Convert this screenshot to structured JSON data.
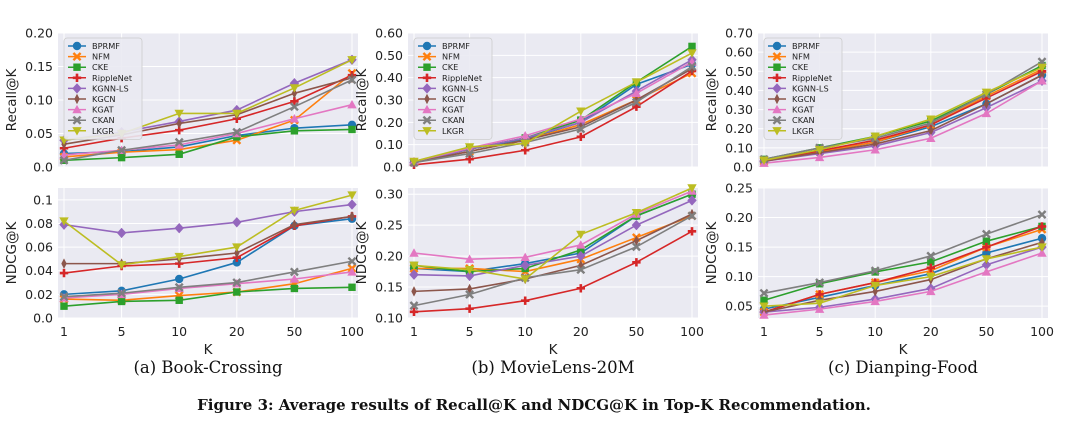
{
  "figure_caption": "Figure 3: Average results of Recall@K and NDCG@K in Top-K Recommendation.",
  "legend_entries": [
    "BPRMF",
    "NFM",
    "CKE",
    "RippleNet",
    "KGNN-LS",
    "KGCN",
    "KGAT",
    "CKAN",
    "LKGR"
  ],
  "series_style": {
    "BPRMF": {
      "color": "#1f77b4",
      "marker": "circle"
    },
    "NFM": {
      "color": "#ff7f0e",
      "marker": "x"
    },
    "CKE": {
      "color": "#2ca02c",
      "marker": "square"
    },
    "RippleNet": {
      "color": "#d62728",
      "marker": "plus"
    },
    "KGNN-LS": {
      "color": "#9467bd",
      "marker": "diamond"
    },
    "KGCN": {
      "color": "#8c564b",
      "marker": "thin-diamond"
    },
    "KGAT": {
      "color": "#e377c2",
      "marker": "triangle-up"
    },
    "CKAN": {
      "color": "#7f7f7f",
      "marker": "x"
    },
    "LKGR": {
      "color": "#bcbd22",
      "marker": "triangle-down"
    }
  },
  "panel_captions": [
    "(a) Book-Crossing",
    "(b) MovieLens-20M",
    "(c) Dianping-Food"
  ],
  "chart_data": [
    {
      "type": "line",
      "id": "bc-recall",
      "dataset": "Book-Crossing",
      "xlabel": "",
      "ylabel": "Recall@K",
      "categories": [
        "1",
        "5",
        "10",
        "20",
        "50",
        "100"
      ],
      "ylim": [
        0,
        0.2
      ],
      "yticks": [
        "0.0",
        "0.05",
        "0.10",
        "0.15",
        "0.20"
      ],
      "ytick_values": [
        0,
        0.05,
        0.1,
        0.15,
        0.2
      ],
      "legend": "top-left",
      "series": [
        {
          "name": "BPRMF",
          "values": [
            0.02,
            0.023,
            0.03,
            0.047,
            0.058,
            0.063
          ]
        },
        {
          "name": "NFM",
          "values": [
            0.015,
            0.022,
            0.026,
            0.04,
            0.07,
            0.14
          ]
        },
        {
          "name": "CKE",
          "values": [
            0.01,
            0.014,
            0.019,
            0.045,
            0.054,
            0.056
          ]
        },
        {
          "name": "RippleNet",
          "values": [
            0.028,
            0.043,
            0.055,
            0.072,
            0.098,
            0.137
          ]
        },
        {
          "name": "KGNN-LS",
          "values": [
            0.04,
            0.052,
            0.068,
            0.085,
            0.125,
            0.16
          ]
        },
        {
          "name": "KGCN",
          "values": [
            0.034,
            0.048,
            0.065,
            0.078,
            0.11,
            0.133
          ]
        },
        {
          "name": "KGAT",
          "values": [
            0.018,
            0.025,
            0.033,
            0.05,
            0.072,
            0.093
          ]
        },
        {
          "name": "CKAN",
          "values": [
            0.01,
            0.025,
            0.037,
            0.052,
            0.09,
            0.13
          ]
        },
        {
          "name": "LKGR",
          "values": [
            0.04,
            0.05,
            0.08,
            0.08,
            0.118,
            0.16
          ]
        }
      ]
    },
    {
      "type": "line",
      "id": "ml-recall",
      "dataset": "MovieLens-20M",
      "xlabel": "",
      "ylabel": "Recall@K",
      "categories": [
        "1",
        "5",
        "10",
        "20",
        "50",
        "100"
      ],
      "ylim": [
        0,
        0.6
      ],
      "yticks": [
        "0.0",
        "0.10",
        "0.20",
        "0.30",
        "0.40",
        "0.50",
        "0.60"
      ],
      "ytick_values": [
        0,
        0.1,
        0.2,
        0.3,
        0.4,
        0.5,
        0.6
      ],
      "legend": "top-left",
      "series": [
        {
          "name": "BPRMF",
          "values": [
            0.02,
            0.08,
            0.125,
            0.2,
            0.37,
            0.46
          ]
        },
        {
          "name": "NFM",
          "values": [
            0.02,
            0.07,
            0.12,
            0.19,
            0.3,
            0.42
          ]
        },
        {
          "name": "CKE",
          "values": [
            0.02,
            0.08,
            0.13,
            0.21,
            0.38,
            0.54
          ]
        },
        {
          "name": "RippleNet",
          "values": [
            0.01,
            0.035,
            0.075,
            0.135,
            0.27,
            0.43
          ]
        },
        {
          "name": "KGNN-LS",
          "values": [
            0.02,
            0.08,
            0.13,
            0.2,
            0.34,
            0.48
          ]
        },
        {
          "name": "KGCN",
          "values": [
            0.02,
            0.07,
            0.12,
            0.18,
            0.3,
            0.44
          ]
        },
        {
          "name": "KGAT",
          "values": [
            0.025,
            0.085,
            0.14,
            0.215,
            0.33,
            0.47
          ]
        },
        {
          "name": "CKAN",
          "values": [
            0.02,
            0.06,
            0.11,
            0.17,
            0.29,
            0.45
          ]
        },
        {
          "name": "LKGR",
          "values": [
            0.025,
            0.09,
            0.105,
            0.25,
            0.38,
            0.51
          ]
        }
      ]
    },
    {
      "type": "line",
      "id": "dp-recall",
      "dataset": "Dianping-Food",
      "xlabel": "",
      "ylabel": "Recall@K",
      "categories": [
        "1",
        "5",
        "10",
        "20",
        "50",
        "100"
      ],
      "ylim": [
        0,
        0.7
      ],
      "yticks": [
        "0.0",
        "0.10",
        "0.20",
        "0.30",
        "0.40",
        "0.50",
        "0.60",
        "0.70"
      ],
      "ytick_values": [
        0,
        0.1,
        0.2,
        0.3,
        0.4,
        0.5,
        0.6,
        0.7
      ],
      "legend": "top-left",
      "series": [
        {
          "name": "BPRMF",
          "values": [
            0.03,
            0.08,
            0.13,
            0.21,
            0.33,
            0.48
          ]
        },
        {
          "name": "NFM",
          "values": [
            0.03,
            0.08,
            0.13,
            0.22,
            0.37,
            0.51
          ]
        },
        {
          "name": "CKE",
          "values": [
            0.04,
            0.1,
            0.16,
            0.24,
            0.38,
            0.53
          ]
        },
        {
          "name": "RippleNet",
          "values": [
            0.03,
            0.085,
            0.14,
            0.22,
            0.36,
            0.5
          ]
        },
        {
          "name": "KGNN-LS",
          "values": [
            0.03,
            0.07,
            0.11,
            0.18,
            0.31,
            0.45
          ]
        },
        {
          "name": "KGCN",
          "values": [
            0.03,
            0.075,
            0.12,
            0.19,
            0.33,
            0.48
          ]
        },
        {
          "name": "KGAT",
          "values": [
            0.02,
            0.05,
            0.09,
            0.15,
            0.28,
            0.45
          ]
        },
        {
          "name": "CKAN",
          "values": [
            0.04,
            0.1,
            0.15,
            0.23,
            0.38,
            0.55
          ]
        },
        {
          "name": "LKGR",
          "values": [
            0.035,
            0.09,
            0.16,
            0.25,
            0.39,
            0.52
          ]
        }
      ]
    },
    {
      "type": "line",
      "id": "bc-ndcg",
      "dataset": "Book-Crossing",
      "xlabel": "K",
      "ylabel": "NDCG@K",
      "categories": [
        "1",
        "5",
        "10",
        "20",
        "50",
        "100"
      ],
      "ylim": [
        0,
        0.11
      ],
      "yticks": [
        "0.0",
        "0.02",
        "0.04",
        "0.06",
        "0.08",
        "0.1"
      ],
      "ytick_values": [
        0,
        0.02,
        0.04,
        0.06,
        0.08,
        0.1
      ],
      "legend": "none",
      "series": [
        {
          "name": "BPRMF",
          "values": [
            0.02,
            0.023,
            0.033,
            0.047,
            0.078,
            0.084
          ]
        },
        {
          "name": "NFM",
          "values": [
            0.016,
            0.015,
            0.019,
            0.022,
            0.029,
            0.042
          ]
        },
        {
          "name": "CKE",
          "values": [
            0.01,
            0.014,
            0.015,
            0.022,
            0.025,
            0.026
          ]
        },
        {
          "name": "RippleNet",
          "values": [
            0.038,
            0.044,
            0.046,
            0.051,
            0.078,
            0.086
          ]
        },
        {
          "name": "KGNN-LS",
          "values": [
            0.079,
            0.072,
            0.076,
            0.081,
            0.09,
            0.096
          ]
        },
        {
          "name": "KGCN",
          "values": [
            0.046,
            0.046,
            0.05,
            0.055,
            0.079,
            0.086
          ]
        },
        {
          "name": "KGAT",
          "values": [
            0.017,
            0.02,
            0.025,
            0.029,
            0.033,
            0.039
          ]
        },
        {
          "name": "CKAN",
          "values": [
            0.018,
            0.021,
            0.026,
            0.03,
            0.039,
            0.048
          ]
        },
        {
          "name": "LKGR",
          "values": [
            0.082,
            0.045,
            0.052,
            0.06,
            0.091,
            0.104
          ]
        }
      ]
    },
    {
      "type": "line",
      "id": "ml-ndcg",
      "dataset": "MovieLens-20M",
      "xlabel": "K",
      "ylabel": "NDCG@K",
      "categories": [
        "1",
        "5",
        "10",
        "20",
        "50",
        "100"
      ],
      "ylim": [
        0.1,
        0.31
      ],
      "yticks": [
        "0.10",
        "0.15",
        "0.20",
        "0.25",
        "0.30"
      ],
      "ytick_values": [
        0.1,
        0.15,
        0.2,
        0.25,
        0.3
      ],
      "legend": "none",
      "series": [
        {
          "name": "BPRMF",
          "values": [
            0.18,
            0.175,
            0.188,
            0.205,
            0.265,
            0.3
          ]
        },
        {
          "name": "NFM",
          "values": [
            0.18,
            0.18,
            0.175,
            0.195,
            0.23,
            0.265
          ]
        },
        {
          "name": "CKE",
          "values": [
            0.185,
            0.175,
            0.18,
            0.21,
            0.265,
            0.3
          ]
        },
        {
          "name": "RippleNet",
          "values": [
            0.11,
            0.115,
            0.128,
            0.148,
            0.19,
            0.24
          ]
        },
        {
          "name": "KGNN-LS",
          "values": [
            0.17,
            0.168,
            0.185,
            0.2,
            0.25,
            0.29
          ]
        },
        {
          "name": "KGCN",
          "values": [
            0.143,
            0.147,
            0.163,
            0.185,
            0.225,
            0.268
          ]
        },
        {
          "name": "KGAT",
          "values": [
            0.205,
            0.195,
            0.198,
            0.218,
            0.268,
            0.305
          ]
        },
        {
          "name": "CKAN",
          "values": [
            0.12,
            0.138,
            0.165,
            0.178,
            0.215,
            0.265
          ]
        },
        {
          "name": "LKGR",
          "values": [
            0.185,
            0.178,
            0.163,
            0.235,
            0.27,
            0.31
          ]
        }
      ]
    },
    {
      "type": "line",
      "id": "dp-ndcg",
      "dataset": "Dianping-Food",
      "xlabel": "K",
      "ylabel": "NDCG@K",
      "categories": [
        "1",
        "5",
        "10",
        "20",
        "50",
        "100"
      ],
      "ylim": [
        0.03,
        0.25
      ],
      "yticks": [
        "0.05",
        "0.10",
        "0.15",
        "0.20",
        "0.25"
      ],
      "ytick_values": [
        0.05,
        0.1,
        0.15,
        0.2,
        0.25
      ],
      "legend": "none",
      "series": [
        {
          "name": "BPRMF",
          "values": [
            0.045,
            0.065,
            0.085,
            0.105,
            0.14,
            0.165
          ]
        },
        {
          "name": "NFM",
          "values": [
            0.04,
            0.07,
            0.09,
            0.11,
            0.15,
            0.18
          ]
        },
        {
          "name": "CKE",
          "values": [
            0.06,
            0.088,
            0.108,
            0.125,
            0.16,
            0.185
          ]
        },
        {
          "name": "RippleNet",
          "values": [
            0.04,
            0.07,
            0.09,
            0.115,
            0.15,
            0.185
          ]
        },
        {
          "name": "KGNN-LS",
          "values": [
            0.04,
            0.048,
            0.062,
            0.08,
            0.12,
            0.15
          ]
        },
        {
          "name": "KGCN",
          "values": [
            0.04,
            0.06,
            0.075,
            0.095,
            0.13,
            0.158
          ]
        },
        {
          "name": "KGAT",
          "values": [
            0.035,
            0.045,
            0.058,
            0.075,
            0.108,
            0.14
          ]
        },
        {
          "name": "CKAN",
          "values": [
            0.072,
            0.09,
            0.11,
            0.135,
            0.172,
            0.205
          ]
        },
        {
          "name": "LKGR",
          "values": [
            0.05,
            0.055,
            0.085,
            0.1,
            0.13,
            0.15
          ]
        }
      ]
    }
  ]
}
